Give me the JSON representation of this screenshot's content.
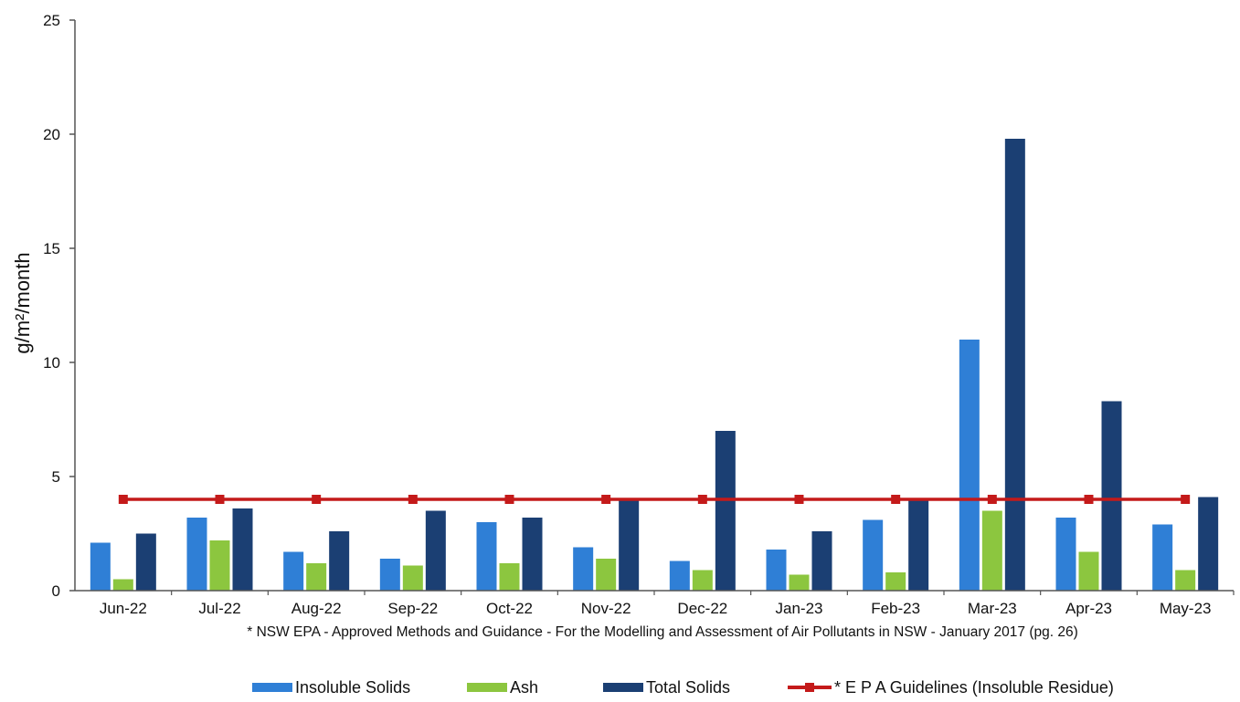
{
  "chart_data": {
    "type": "bar",
    "categories": [
      "Jun-22",
      "Jul-22",
      "Aug-22",
      "Sep-22",
      "Oct-22",
      "Nov-22",
      "Dec-22",
      "Jan-23",
      "Feb-23",
      "Mar-23",
      "Apr-23",
      "May-23"
    ],
    "series": [
      {
        "name": "Insoluble Solids",
        "kind": "bar",
        "color": "#2f7fd6",
        "values": [
          2.1,
          3.2,
          1.7,
          1.4,
          3.0,
          1.9,
          1.3,
          1.8,
          3.1,
          11.0,
          3.2,
          2.9
        ]
      },
      {
        "name": "Ash",
        "kind": "bar",
        "color": "#8cc63f",
        "values": [
          0.5,
          2.2,
          1.2,
          1.1,
          1.2,
          1.4,
          0.9,
          0.7,
          0.8,
          3.5,
          1.7,
          0.9
        ]
      },
      {
        "name": "Total Solids",
        "kind": "bar",
        "color": "#1b3f73",
        "values": [
          2.5,
          3.6,
          2.6,
          3.5,
          3.2,
          4.0,
          7.0,
          2.6,
          4.0,
          19.8,
          8.3,
          4.1
        ]
      },
      {
        "name": "* E P A Guidelines (Insoluble Residue)",
        "kind": "line",
        "color": "#c41a1a",
        "values": [
          4.0,
          4.0,
          4.0,
          4.0,
          4.0,
          4.0,
          4.0,
          4.0,
          4.0,
          4.0,
          4.0,
          4.0
        ]
      }
    ],
    "ylabel": "g/m²/month",
    "ylim": [
      0,
      25
    ],
    "yticks": [
      "0",
      "5",
      "10",
      "15",
      "20",
      "25"
    ],
    "footnote": "* NSW EPA - Approved Methods and Guidance - For the Modelling and Assessment of Air Pollutants in NSW - January 2017 (pg. 26)",
    "legend_position": "bottom",
    "grid": false
  }
}
